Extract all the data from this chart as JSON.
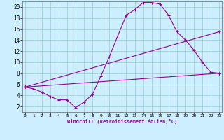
{
  "xlabel": "Windchill (Refroidissement éolien,°C)",
  "bg_color": "#cceeff",
  "line_color": "#990099",
  "grid_color": "#99cccc",
  "x_min": 0,
  "x_max": 23,
  "y_min": 1,
  "y_max": 21,
  "y_ticks": [
    2,
    4,
    6,
    8,
    10,
    12,
    14,
    16,
    18,
    20
  ],
  "x_ticks": [
    0,
    1,
    2,
    3,
    4,
    5,
    6,
    7,
    8,
    9,
    10,
    11,
    12,
    13,
    14,
    15,
    16,
    17,
    18,
    19,
    20,
    21,
    22,
    23
  ],
  "curve1_x": [
    0,
    1,
    2,
    3,
    4,
    5,
    6,
    7,
    8,
    9,
    10,
    11,
    12,
    13,
    14,
    15,
    16,
    17,
    18,
    19,
    20,
    21,
    22,
    23
  ],
  "curve1_y": [
    5.5,
    5.2,
    4.6,
    3.8,
    3.2,
    3.2,
    1.8,
    2.8,
    4.2,
    7.5,
    11.0,
    14.8,
    18.5,
    19.5,
    20.8,
    20.8,
    20.5,
    18.5,
    15.5,
    14.0,
    12.2,
    10.0,
    8.2,
    8.0
  ],
  "curve2_x": [
    0,
    23
  ],
  "curve2_y": [
    5.5,
    8.0
  ],
  "curve3_x": [
    0,
    23
  ],
  "curve3_y": [
    5.5,
    15.5
  ],
  "marker": "+"
}
